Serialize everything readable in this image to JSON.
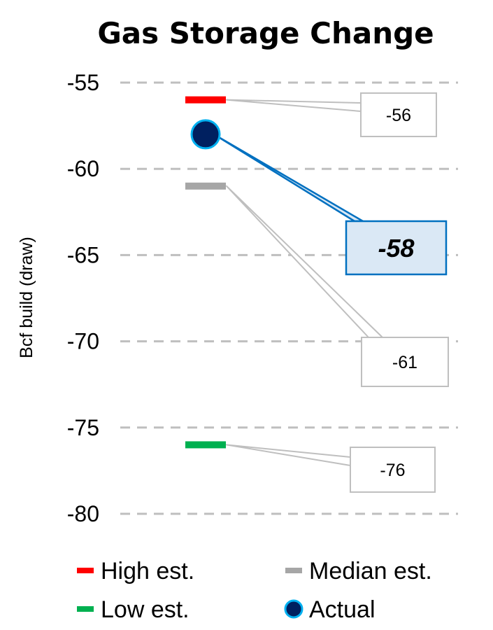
{
  "chart_data": {
    "type": "scatter",
    "title": "Gas Storage Change",
    "ylabel": "Bcf build (draw)",
    "ylim": [
      -80,
      -55
    ],
    "yticks": [
      -55,
      -60,
      -65,
      -70,
      -75,
      -80
    ],
    "ytick_labels": [
      "-55",
      "-60",
      "-65",
      "-70",
      "-75",
      "-80"
    ],
    "grid": true,
    "legend_placement": "bottom",
    "series": [
      {
        "name": "High est.",
        "value": -56,
        "label": "-56",
        "marker": "dash",
        "color": "#ff0000"
      },
      {
        "name": "Median est.",
        "value": -61,
        "label": "-61",
        "marker": "dash",
        "color": "#a6a6a6"
      },
      {
        "name": "Low est.",
        "value": -76,
        "label": "-76",
        "marker": "dash",
        "color": "#00b050"
      },
      {
        "name": "Actual",
        "value": -58,
        "label": "-58",
        "marker": "circle",
        "color": "#002060",
        "edge_color": "#00b0f0"
      }
    ]
  },
  "colors": {
    "gridline": "#bfbfbf",
    "callout_border": "#bfbfbf",
    "actual_callout_fill": "#dae8f5",
    "actual_callout_border": "#0070c0"
  }
}
